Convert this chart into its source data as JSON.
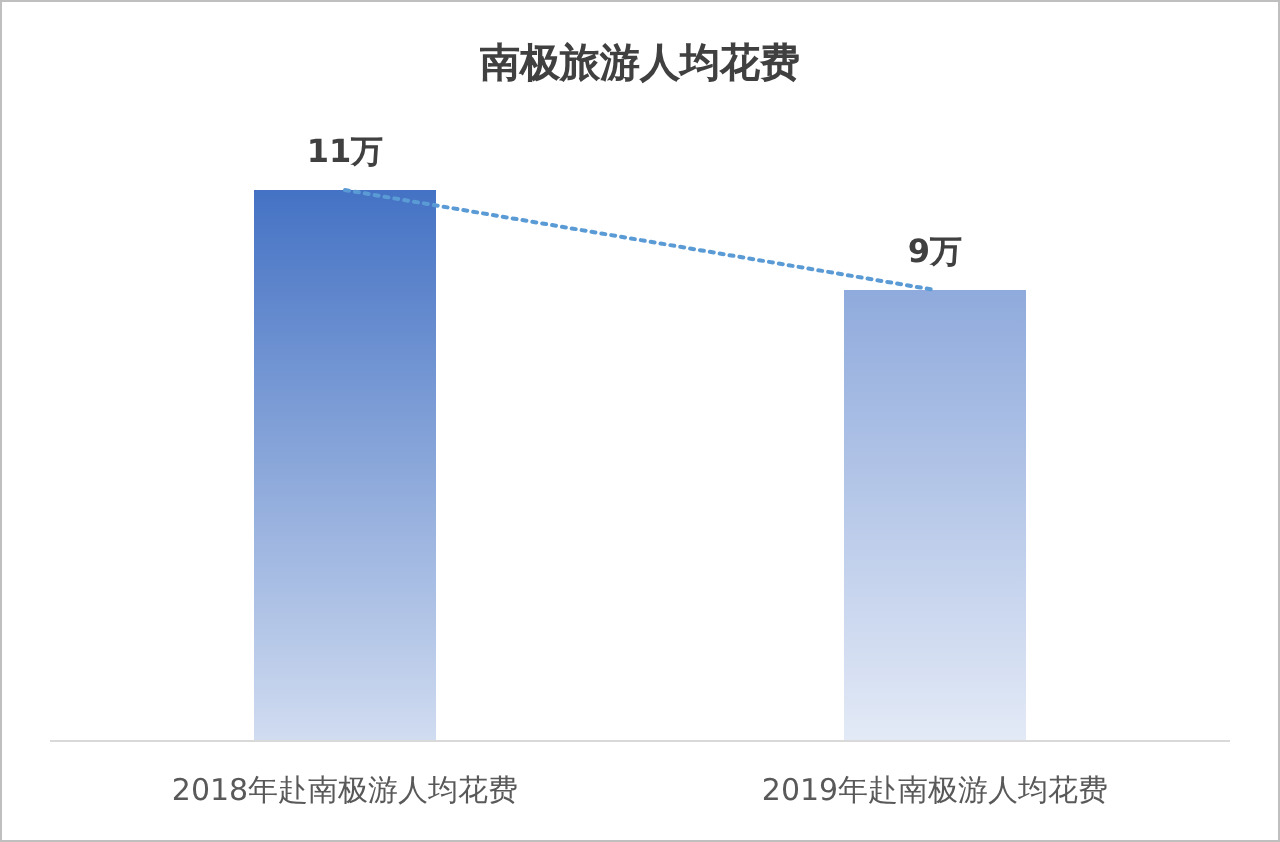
{
  "chart_data": {
    "type": "bar",
    "title": "南极旅游人均花费",
    "categories": [
      "2018年赴南极游人均花费",
      "2019年赴南极游人均花费"
    ],
    "series": [
      {
        "values": [
          11,
          9
        ],
        "colors": [
          "#4472c4",
          "#8faadc"
        ],
        "value_labels": [
          "11万",
          "9万"
        ]
      },
      {
        "type": "line",
        "values": [
          11,
          9
        ],
        "color": "#5b9bd5",
        "line_style": "dotted",
        "marker": "none"
      }
    ]
  }
}
